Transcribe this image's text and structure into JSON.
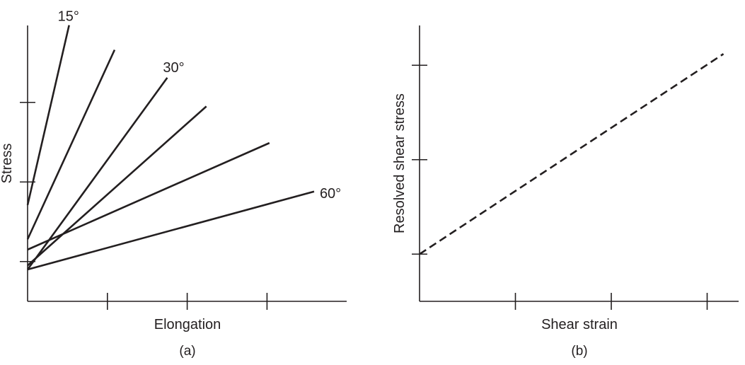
{
  "chart_data": [
    {
      "type": "line",
      "caption": "(a)",
      "xlabel": "Elongation",
      "ylabel": "Stress",
      "xlim": [
        0,
        4
      ],
      "ylim": [
        0,
        3.5
      ],
      "xticks": [
        1,
        2,
        3
      ],
      "yticks": [
        0.5,
        1.5,
        2.5
      ],
      "series": [
        {
          "name": "15°",
          "x": [
            0,
            0.52
          ],
          "y": [
            1.21,
            3.47
          ]
        },
        {
          "name": "",
          "x": [
            0,
            1.09
          ],
          "y": [
            0.78,
            3.16
          ]
        },
        {
          "name": "30°",
          "x": [
            0,
            1.75
          ],
          "y": [
            0.4,
            2.81
          ]
        },
        {
          "name": "",
          "x": [
            0,
            2.24
          ],
          "y": [
            0.45,
            2.45
          ]
        },
        {
          "name": "",
          "x": [
            0,
            3.03
          ],
          "y": [
            0.65,
            1.99
          ]
        },
        {
          "name": "60°",
          "x": [
            0,
            3.59
          ],
          "y": [
            0.4,
            1.38
          ]
        }
      ]
    },
    {
      "type": "line",
      "caption": "(b)",
      "xlabel": "Shear strain",
      "ylabel": "Resolved shear stress",
      "xlim": [
        0,
        3.4
      ],
      "ylim": [
        0,
        3.5
      ],
      "xticks": [
        1,
        2,
        3
      ],
      "yticks": [
        0.5,
        1.5,
        2.5
      ],
      "series": [
        {
          "name": "",
          "style": "dashed",
          "x": [
            0,
            3.17
          ],
          "y": [
            0.5,
            2.62
          ]
        }
      ]
    }
  ]
}
